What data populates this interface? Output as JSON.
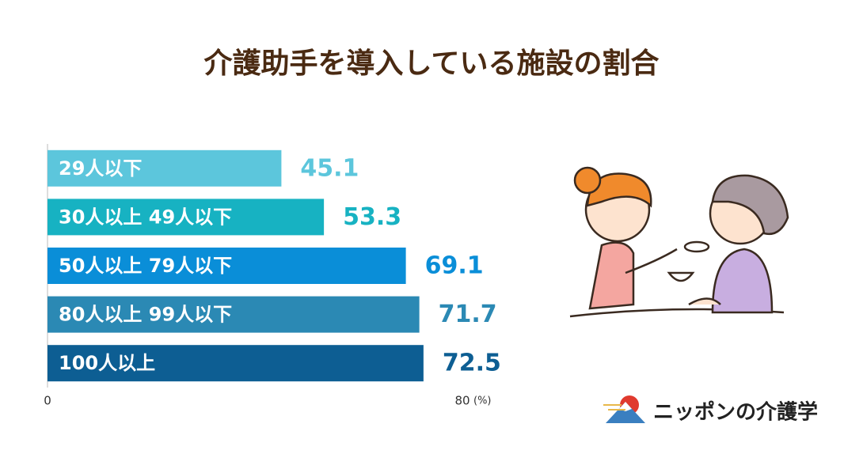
{
  "chart_data": {
    "type": "bar",
    "orientation": "horizontal",
    "title": "介護助手を導入している施設の割合",
    "categories": [
      "29人以下",
      "30人以上 49人以下",
      "50人以上 79人以下",
      "80人以上 99人以下",
      "100人以上"
    ],
    "values": [
      45.1,
      53.3,
      69.1,
      71.7,
      72.5
    ],
    "colors": [
      "#5cc6dc",
      "#17b2c2",
      "#0a8ed8",
      "#2b89b4",
      "#0d5e93"
    ],
    "xlim": [
      0,
      80
    ],
    "xticks": [
      0,
      80
    ],
    "unit": "(%)"
  },
  "brand": "ニッポンの介護学"
}
